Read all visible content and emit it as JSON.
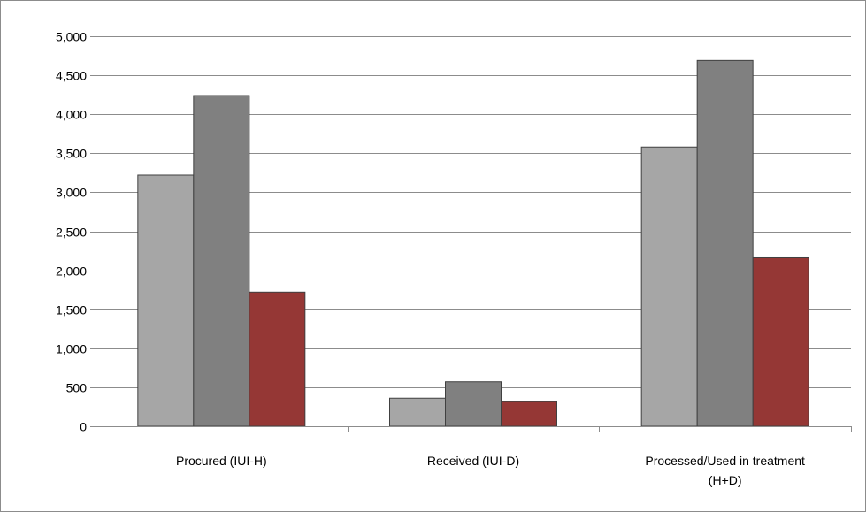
{
  "chart_data": {
    "type": "bar",
    "categories": [
      "Procured (IUI-H)",
      "Received (IUI-D)",
      "Processed/Used in treatment (H+D)"
    ],
    "category_lines": [
      [
        "Procured (IUI-H)"
      ],
      [
        "Received (IUI-D)"
      ],
      [
        "Processed/Used in treatment",
        "(H+D)"
      ]
    ],
    "series": [
      {
        "values": [
          3220,
          360,
          3580
        ],
        "color": "#a6a6a6"
      },
      {
        "values": [
          4240,
          570,
          4690
        ],
        "color": "#808080"
      },
      {
        "values": [
          1720,
          315,
          2160
        ],
        "color": "#953735"
      }
    ],
    "ylim": [
      0,
      5000
    ],
    "yticks": [
      0,
      500,
      1000,
      1500,
      2000,
      2500,
      3000,
      3500,
      4000,
      4500,
      5000
    ],
    "ytick_labels": [
      "0",
      "500",
      "1,000",
      "1,500",
      "2,000",
      "2,500",
      "3,000",
      "3,500",
      "4,000",
      "4,500",
      "5,000"
    ],
    "grid": true,
    "legend": "none",
    "title": "",
    "xlabel": "",
    "ylabel": ""
  }
}
